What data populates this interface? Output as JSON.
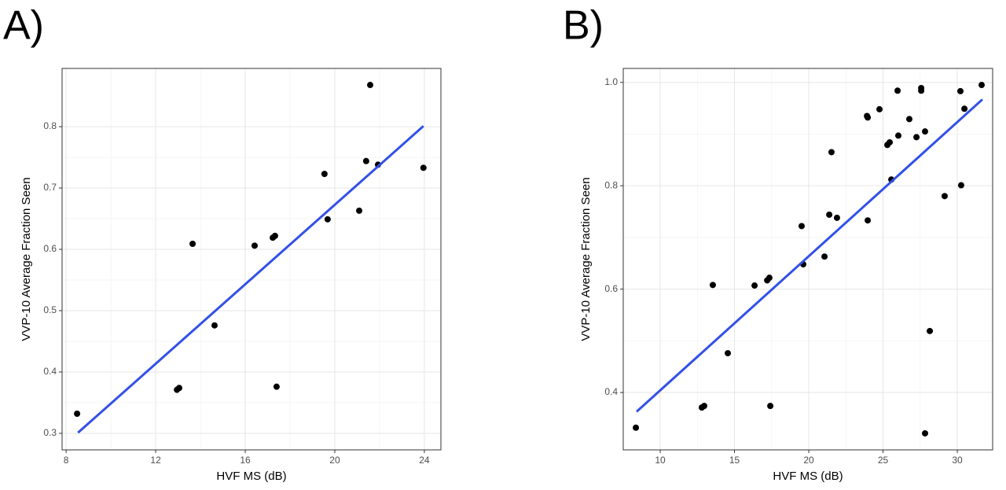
{
  "chart_data": [
    {
      "type": "scatter",
      "label": "A)",
      "xlabel": "HVF MS (dB)",
      "ylabel": "VVP-10 Average Fraction Seen",
      "xlim": [
        7.82,
        24.74
      ],
      "ylim": [
        0.273,
        0.895
      ],
      "xticks": [
        8,
        12,
        16,
        20,
        24
      ],
      "yticks": [
        0.3,
        0.4,
        0.5,
        0.6,
        0.7,
        0.8
      ],
      "grid": true,
      "color": "#000000",
      "x": [
        8.49,
        12.95,
        13.05,
        13.65,
        14.63,
        16.42,
        17.23,
        17.33,
        17.4,
        19.54,
        19.68,
        21.09,
        21.4,
        21.58,
        21.93,
        23.96
      ],
      "values": [
        0.332,
        0.371,
        0.374,
        0.609,
        0.476,
        0.606,
        0.619,
        0.622,
        0.376,
        0.723,
        0.649,
        0.663,
        0.744,
        0.868,
        0.738,
        0.733
      ],
      "fit_line": {
        "color": "#3250e8",
        "x": [
          8.53,
          23.96
        ],
        "values": [
          0.301,
          0.801
        ]
      }
    },
    {
      "type": "scatter",
      "label": "B)",
      "xlabel": "HVF MS (dB)",
      "ylabel": "VVP-10 Average Fraction Seen",
      "xlim": [
        7.51,
        32.38
      ],
      "ylim": [
        0.289,
        1.027
      ],
      "xticks": [
        10,
        15,
        20,
        25,
        30
      ],
      "yticks": [
        0.4,
        0.6,
        0.8,
        {
          "value": 1,
          "label": "1.0"
        }
      ],
      "grid": true,
      "color": "#000000",
      "x": [
        8.36,
        12.8,
        12.96,
        13.54,
        14.55,
        16.35,
        17.2,
        17.35,
        17.41,
        19.52,
        19.63,
        21.06,
        21.38,
        21.53,
        21.9,
        23.92,
        23.97,
        23.97,
        24.76,
        25.29,
        25.45,
        25.56,
        25.98,
        26.03,
        26.77,
        27.25,
        27.57,
        27.57,
        27.83,
        27.83,
        28.15,
        29.15,
        30.21,
        30.26,
        30.48,
        31.64
      ],
      "values": [
        0.332,
        0.371,
        0.374,
        0.608,
        0.476,
        0.607,
        0.617,
        0.622,
        0.374,
        0.722,
        0.648,
        0.663,
        0.744,
        0.865,
        0.738,
        0.935,
        0.932,
        0.733,
        0.948,
        0.879,
        0.884,
        0.812,
        0.984,
        0.897,
        0.929,
        0.894,
        0.989,
        0.984,
        0.905,
        0.321,
        0.519,
        0.78,
        0.983,
        0.801,
        0.949,
        0.995
      ],
      "fit_line": {
        "color": "#3250e8",
        "x": [
          8.41,
          31.69
        ],
        "values": [
          0.363,
          0.967
        ]
      }
    }
  ]
}
